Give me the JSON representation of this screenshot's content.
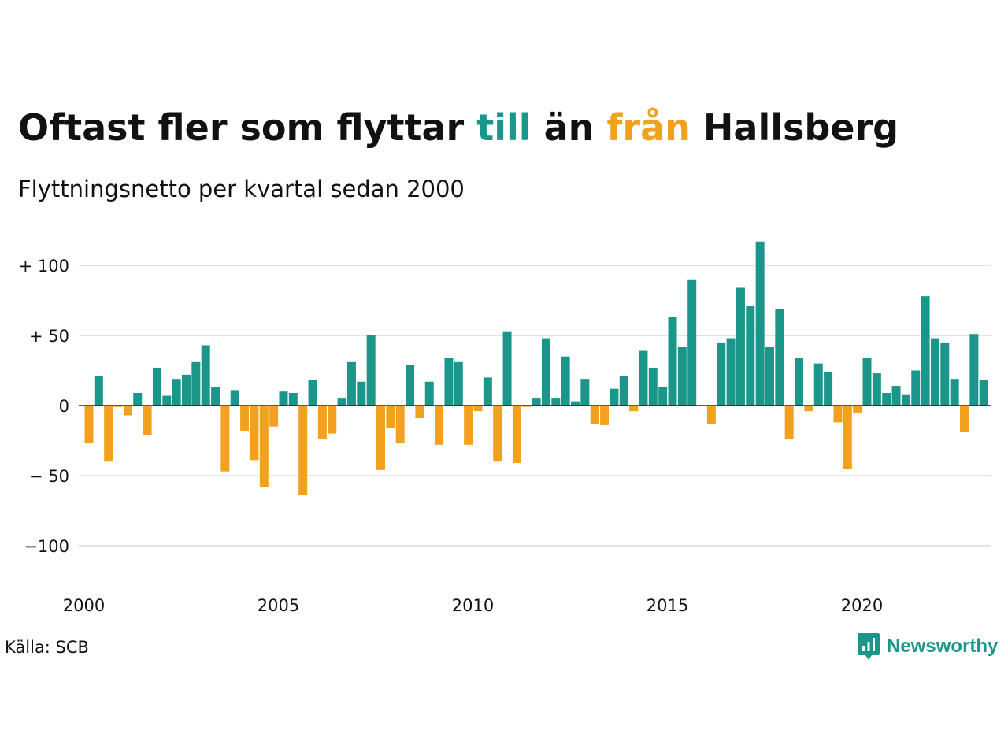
{
  "title": {
    "part1": "Oftast fler som flyttar ",
    "highlight_pos": "till",
    "part2": " än ",
    "highlight_neg": "från",
    "part3": " Hallsberg"
  },
  "subtitle": "Flyttningsnetto per kvartal sedan 2000",
  "source": "Källa: SCB",
  "brand": "Newsworthy",
  "colors": {
    "positive": "#1b968a",
    "negative": "#f2a11f",
    "grid": "#e3e3e3",
    "baseline": "#222222"
  },
  "chart_data": {
    "type": "bar",
    "title": "Oftast fler som flyttar till än från Hallsberg",
    "subtitle": "Flyttningsnetto per kvartal sedan 2000",
    "x_start": "2000",
    "x_step": "quarter",
    "ylim": [
      -125,
      125
    ],
    "yticks": [
      100,
      50,
      0,
      -50,
      -100
    ],
    "ytick_labels": [
      "+ 100",
      "+  50",
      "0",
      "− 50",
      "−100"
    ],
    "xticks": [
      2000,
      2005,
      2010,
      2015,
      2020
    ],
    "xtick_labels": [
      "2000",
      "2005",
      "2010",
      "2015",
      "2020"
    ],
    "grid": true,
    "values": [
      -27,
      21,
      -40,
      -1,
      -7,
      9,
      -21,
      27,
      7,
      19,
      22,
      31,
      43,
      13,
      -47,
      11,
      -18,
      -39,
      -58,
      -15,
      10,
      9,
      -64,
      18,
      -24,
      -20,
      5,
      31,
      17,
      50,
      -46,
      -16,
      -27,
      29,
      -9,
      17,
      -28,
      34,
      31,
      -28,
      -4,
      20,
      -40,
      53,
      -41,
      -1,
      5,
      48,
      5,
      35,
      3,
      19,
      -13,
      -14,
      12,
      21,
      -4,
      39,
      27,
      13,
      63,
      42,
      90,
      0,
      -13,
      45,
      48,
      84,
      71,
      117,
      42,
      69,
      -24,
      34,
      -4,
      30,
      24,
      -12,
      -45,
      -5,
      34,
      23,
      9,
      14,
      8,
      25,
      78,
      48,
      45,
      19,
      -19,
      51,
      18
    ]
  }
}
